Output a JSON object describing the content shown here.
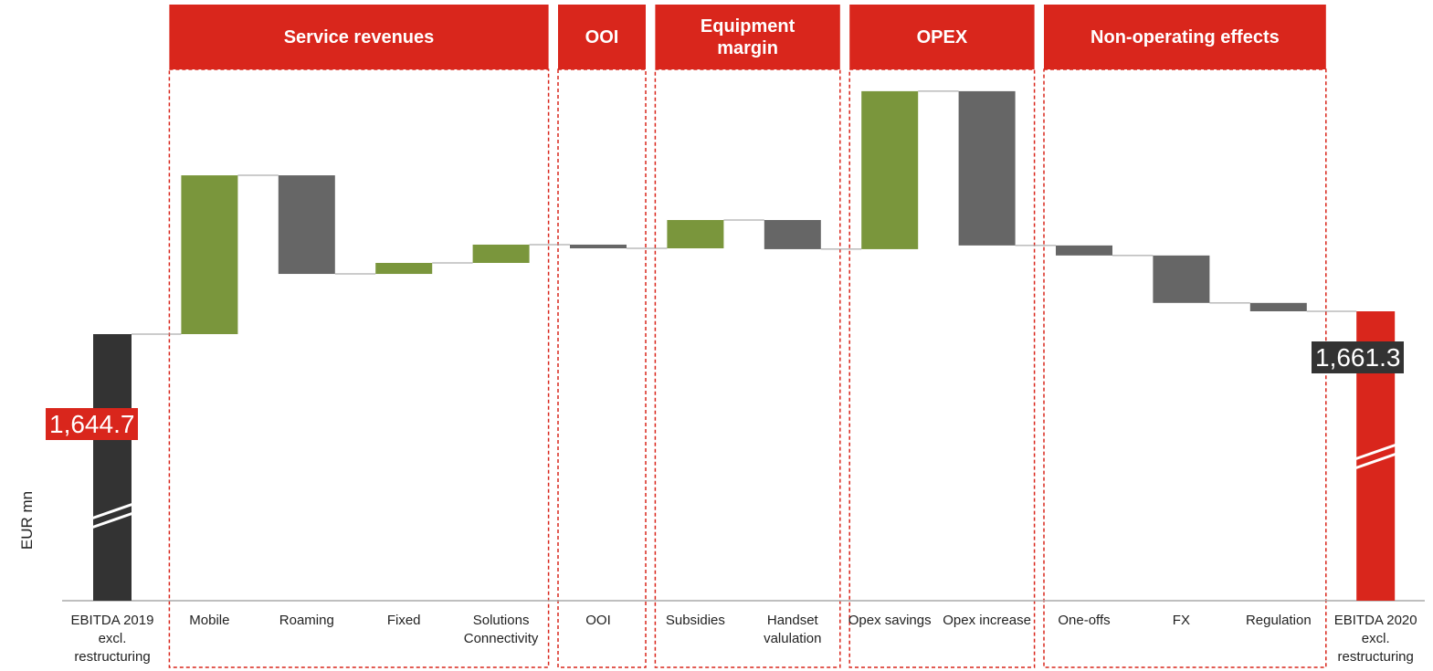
{
  "chart_data": {
    "type": "waterfall",
    "y_label": "EUR mn",
    "categories": [
      "EBITDA 2019 excl. restructuring",
      "Mobile",
      "Roaming",
      "Fixed",
      "Solutions Connectivity",
      "OOI",
      "Subsidies",
      "Handset valulation",
      "Opex savings",
      "Opex increase",
      "One-offs",
      "FX",
      "Regulation",
      "EBITDA 2020 excl. restructuring"
    ],
    "values": [
      1644.7,
      115.5,
      -71.7,
      8.0,
      13.3,
      -2.7,
      20.6,
      -21.2,
      114.9,
      -112.2,
      -7.3,
      -34.5,
      -6.1,
      1661.3
    ],
    "value_labels": [
      "1,644.7",
      null,
      null,
      null,
      null,
      null,
      null,
      null,
      null,
      null,
      null,
      null,
      null,
      "1,661.3"
    ],
    "groups": [
      {
        "label": "Service revenues",
        "span": 4
      },
      {
        "label": "OOI",
        "span": 1
      },
      {
        "label": "Equipment margin",
        "span": 2
      },
      {
        "label": "OPEX",
        "span": 2
      },
      {
        "label": "Non-operating effects",
        "span": 3
      }
    ],
    "colors": {
      "increase": "#7a963c",
      "decrease": "#666666",
      "start": "#333333",
      "end": "#d9261c",
      "group": "#d9261c"
    }
  }
}
